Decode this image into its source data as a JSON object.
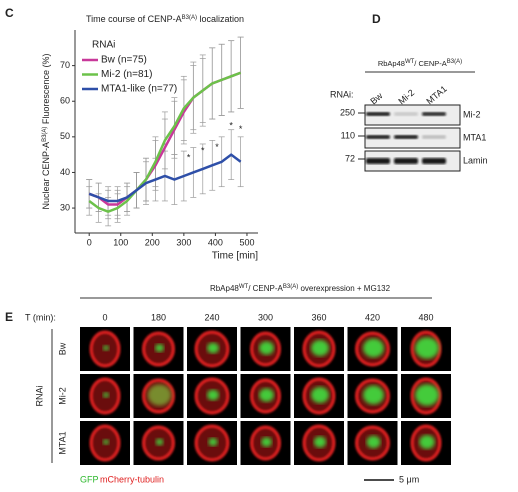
{
  "panels": {
    "c": "C",
    "d": "D",
    "e": "E"
  },
  "chart_data": {
    "type": "line",
    "title": [
      {
        "text": "Time course of CENP-A"
      },
      {
        "text": "B3(A)",
        "sup": true
      },
      {
        "text": " localization"
      }
    ],
    "y_label": [
      {
        "text": "Nuclear CENP-A"
      },
      {
        "text": "B3(A)",
        "sup": true
      },
      {
        "text": " Fluorescence (%)"
      }
    ],
    "x_label": "Time [min]",
    "legend_title": "RNAi",
    "x": [
      0,
      30,
      60,
      90,
      120,
      150,
      180,
      210,
      240,
      270,
      300,
      330,
      360,
      390,
      420,
      450,
      480
    ],
    "series": [
      {
        "name": "Bw (n=75)",
        "color": "#c8389a",
        "values": [
          34,
          33,
          31,
          31,
          33,
          35,
          38,
          42,
          47,
          52,
          57,
          61,
          63,
          65,
          66,
          67,
          68
        ],
        "errors": [
          4,
          4,
          4,
          4,
          4,
          5,
          6,
          7,
          8,
          8,
          9,
          10,
          10,
          10,
          10,
          10,
          10
        ]
      },
      {
        "name": "Mi-2 (n=81)",
        "color": "#6cc24a",
        "values": [
          32,
          30,
          29,
          30,
          32,
          35,
          38,
          43,
          49,
          53,
          58,
          61,
          63,
          65,
          66,
          67,
          68
        ],
        "errors": [
          4,
          4,
          4,
          4,
          4,
          5,
          6,
          7,
          8,
          8,
          9,
          9,
          9,
          10,
          10,
          10,
          10
        ]
      },
      {
        "name": "MTA1-like (n=77)",
        "color": "#2e4fa8",
        "values": [
          34,
          33,
          32,
          32,
          33,
          35,
          37,
          38,
          39,
          38,
          39,
          40,
          41,
          42,
          43,
          45,
          43
        ],
        "errors": [
          4,
          4,
          4,
          4,
          4,
          5,
          6,
          6,
          7,
          7,
          7,
          7,
          7,
          7,
          7,
          7,
          7
        ]
      }
    ],
    "annotations": {
      "text": "*",
      "x": [
        315,
        360,
        405,
        450,
        480
      ],
      "y": [
        44,
        46,
        47,
        53,
        52
      ]
    },
    "xlim": [
      -45,
      535
    ],
    "ylim": [
      23,
      80
    ],
    "xticks": [
      0,
      100,
      200,
      300,
      400,
      500
    ],
    "yticks": [
      30,
      40,
      50,
      60,
      70
    ]
  },
  "blot": {
    "header": [
      {
        "text": "RbAp48"
      },
      {
        "text": "WT",
        "sup": true
      },
      {
        "text": "/ CENP-A"
      },
      {
        "text": "B3(A)",
        "sup": true
      }
    ],
    "rnai_label": "RNAi:",
    "lanes": [
      "Bw",
      "Mi-2",
      "MTA1"
    ],
    "markers": [
      "250",
      "110",
      "72"
    ],
    "bands": [
      "Mi-2",
      "MTA1",
      "Lamin"
    ]
  },
  "imaging": {
    "header": [
      {
        "text": "RbAp48"
      },
      {
        "text": "WT",
        "sup": true
      },
      {
        "text": "/ CENP-A"
      },
      {
        "text": "B3(A)",
        "sup": true
      },
      {
        "text": " overexpression + MG132"
      }
    ],
    "time_label": "T (min):",
    "times": [
      "0",
      "180",
      "240",
      "300",
      "360",
      "420",
      "480"
    ],
    "rows": [
      "Bw",
      "Mi-2",
      "MTA1"
    ],
    "group_label": "RNAi",
    "legend": [
      "GFP",
      "mCherry-tubulin"
    ],
    "scale": "5 μm"
  }
}
